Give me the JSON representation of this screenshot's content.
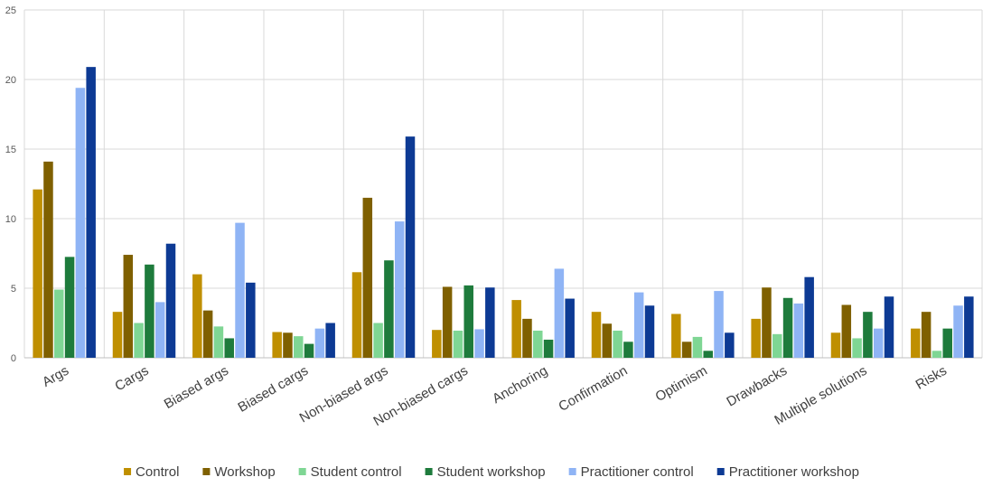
{
  "chart_data": {
    "type": "bar",
    "title": "",
    "xlabel": "",
    "ylabel": "",
    "ylim": [
      0,
      25
    ],
    "yticks": [
      0,
      5,
      10,
      15,
      20,
      25
    ],
    "grid": true,
    "legend_position": "bottom",
    "categories": [
      "Args",
      "Cargs",
      "Biased args",
      "Biased cargs",
      "Non-biased args",
      "Non-biased cargs",
      "Anchoring",
      "Confirmation",
      "Optimism",
      "Drawbacks",
      "Multiple solutions",
      "Risks"
    ],
    "series": [
      {
        "name": "Control",
        "color": "#BF8F00",
        "values": [
          12.1,
          3.3,
          6.0,
          1.85,
          6.15,
          2.0,
          4.15,
          3.3,
          3.15,
          2.8,
          1.8,
          2.1
        ]
      },
      {
        "name": "Workshop",
        "color": "#7F6000",
        "values": [
          14.1,
          7.4,
          3.4,
          1.8,
          11.5,
          5.1,
          2.8,
          2.45,
          1.15,
          5.05,
          3.8,
          3.3
        ]
      },
      {
        "name": "Student control",
        "color": "#7FD694",
        "values": [
          4.9,
          2.5,
          2.25,
          1.55,
          2.5,
          1.95,
          1.95,
          1.95,
          1.5,
          1.7,
          1.4,
          0.5
        ]
      },
      {
        "name": "Student workshop",
        "color": "#1E7B3C",
        "values": [
          7.25,
          6.7,
          1.4,
          1.0,
          7.0,
          5.2,
          1.3,
          1.15,
          0.5,
          4.3,
          3.3,
          2.1
        ]
      },
      {
        "name": "Practitioner control",
        "color": "#8FB4F5",
        "values": [
          19.4,
          4.0,
          9.7,
          2.1,
          9.8,
          2.05,
          6.4,
          4.7,
          4.8,
          3.9,
          2.1,
          3.75
        ]
      },
      {
        "name": "Practitioner workshop",
        "color": "#0D3A94",
        "values": [
          20.9,
          8.2,
          5.4,
          2.5,
          15.9,
          5.05,
          4.25,
          3.75,
          1.8,
          5.8,
          4.4,
          4.4
        ]
      }
    ]
  }
}
